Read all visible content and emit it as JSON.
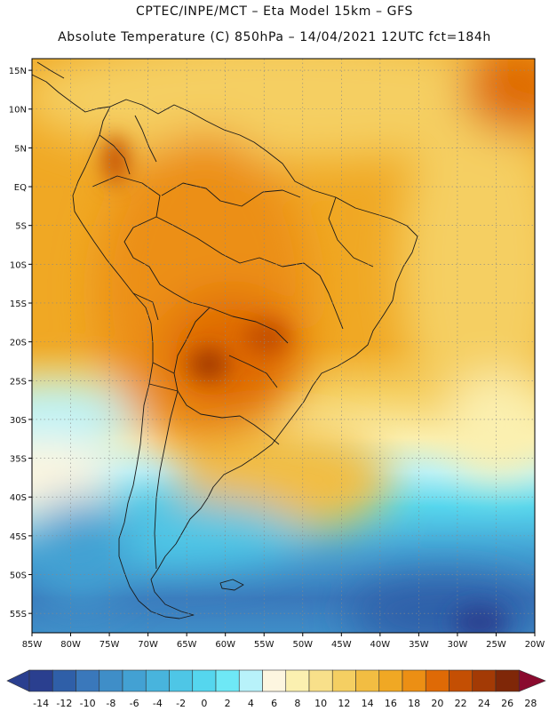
{
  "title_line1": "CPTEC/INPE/MCT –  Eta Model 15km – GFS",
  "title_line2": "Absolute Temperature (C) 850hPa – 14/04/2021 12UTC fct=184h",
  "map": {
    "lon_range": [
      -85,
      -20
    ],
    "lat_range": [
      -57.5,
      16.5
    ],
    "lat_labels": [
      "15N",
      "10N",
      "5N",
      "EQ",
      "5S",
      "10S",
      "15S",
      "20S",
      "25S",
      "30S",
      "35S",
      "40S",
      "45S",
      "50S",
      "55S"
    ],
    "lat_values": [
      15,
      10,
      5,
      0,
      -5,
      -10,
      -15,
      -20,
      -25,
      -30,
      -35,
      -40,
      -45,
      -50,
      -55
    ],
    "lon_labels": [
      "85W",
      "80W",
      "75W",
      "70W",
      "65W",
      "60W",
      "55W",
      "50W",
      "45W",
      "40W",
      "35W",
      "30W",
      "25W",
      "20W"
    ],
    "lon_values": [
      -85,
      -80,
      -75,
      -70,
      -65,
      -60,
      -55,
      -50,
      -45,
      -40,
      -35,
      -30,
      -25,
      -20
    ],
    "grid": "dotted"
  },
  "colorbar": {
    "labels": [
      "-14",
      "-12",
      "-10",
      "-8",
      "-6",
      "-4",
      "-2",
      "0",
      "2",
      "4",
      "6",
      "8",
      "10",
      "12",
      "14",
      "16",
      "18",
      "20",
      "22",
      "24",
      "26",
      "28"
    ],
    "colors": [
      "#2a3f8f",
      "#2f5fa8",
      "#3a78bb",
      "#3f8ec8",
      "#43a1d3",
      "#48b4dd",
      "#4ec6e6",
      "#55d6ee",
      "#6ee8f6",
      "#b8f2fa",
      "#fdf6e0",
      "#fbf0b0",
      "#f8e08a",
      "#f5cf62",
      "#f2bd42",
      "#f0a824",
      "#ec8f14",
      "#df6a06",
      "#c44f03",
      "#a33a05",
      "#7f2708",
      "#8a0a2e"
    ]
  }
}
